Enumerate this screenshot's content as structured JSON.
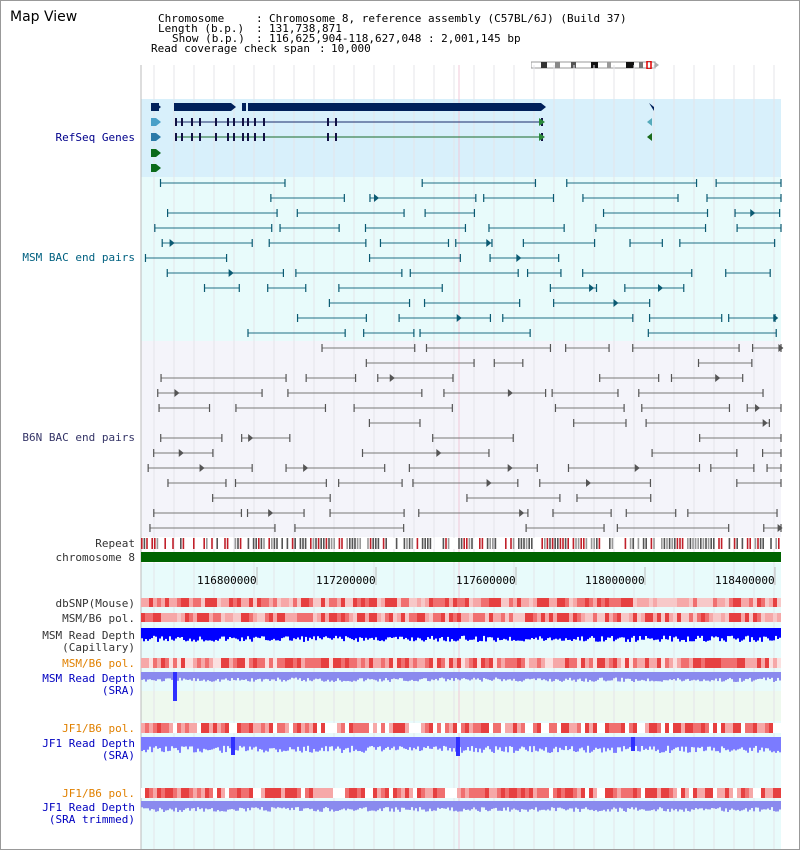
{
  "title": "Map View",
  "header": {
    "chromosome_key": "Chromosome",
    "chromosome_val": "Chromosome 8, reference assembly (C57BL/6J) (Build 37)",
    "length_key": "Length (b.p.)",
    "length_val": "131,738,871",
    "show_key": "Show (b.p.)",
    "show_val": "116,625,904-118,627,048 : 2,001,145 bp",
    "coverage_key": "Read coverage check span",
    "coverage_val": "10,000"
  },
  "tracks": {
    "refseq": "RefSeq Genes",
    "msm_bac": "MSM BAC end pairs",
    "b6n_bac": "B6N BAC end pairs",
    "repeat": "Repeat",
    "chromosome": "chromosome 8",
    "dbsnp": "dbSNP(Mouse)",
    "msm_b6_pol_1": "MSM/B6 pol.",
    "msm_read_depth_cap_1": "MSM Read Depth",
    "msm_read_depth_cap_2": "(Capillary)",
    "msm_b6_pol_2": "MSM/B6 pol.",
    "msm_read_depth_sra_1": "MSM Read Depth",
    "msm_read_depth_sra_2": "(SRA)",
    "jf1_b6_pol_1": "JF1/B6 pol.",
    "jf1_read_depth_sra_1": "JF1 Read Depth",
    "jf1_read_depth_sra_2": "(SRA)",
    "jf1_b6_pol_2": "JF1/B6 pol.",
    "jf1_read_depth_trim_1": "JF1 Read Depth",
    "jf1_read_depth_trim_2": "(SRA trimmed)"
  },
  "axis": {
    "ticks": [
      "116800000",
      "117200000",
      "117600000",
      "118000000",
      "118400000"
    ]
  },
  "colors": {
    "navy": "#00205a",
    "teal": "#006080",
    "refseq_bg": "#d8f0fb",
    "msm_bg": "#e8fbfb",
    "b6n_bg": "#f4f4fa",
    "chrom_green": "#006400",
    "depth_blue": "#0000ff",
    "depth_light": "#7b7bff",
    "pol_red": "#e03030",
    "orange": "#e08000"
  }
}
